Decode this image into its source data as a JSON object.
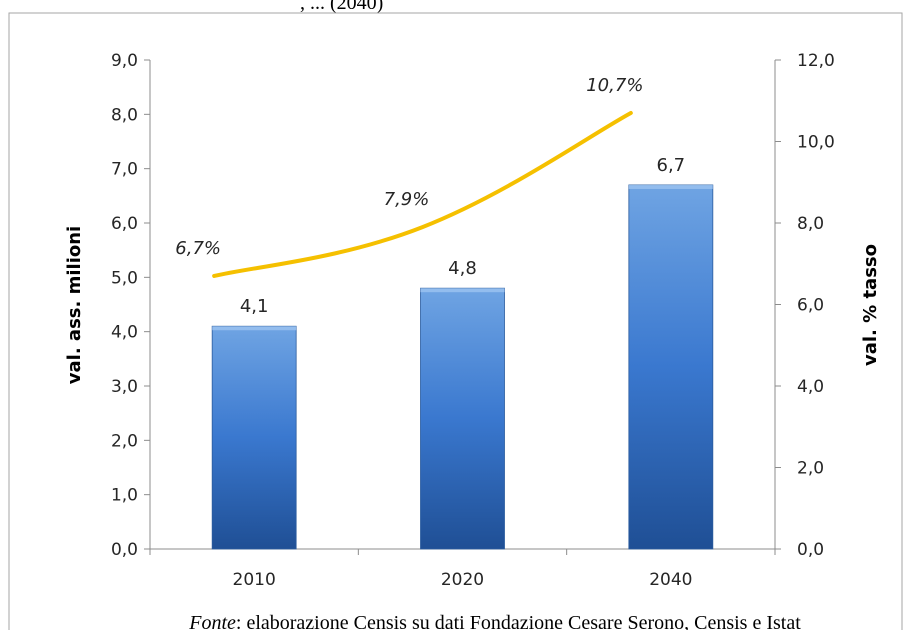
{
  "header_fragment": ", ... (2040)",
  "source_note": {
    "prefix": "Fonte",
    "text": ": elaborazione Censis su dati Fondazione Cesare Serono, Censis e Istat"
  },
  "colors": {
    "bar_top": "#6fa4e3",
    "bar_mid": "#3a78cf",
    "bar_bottom": "#1f4f95",
    "line": "#f5c000",
    "axis": "#8c8c8c",
    "frame": "#a6a6a6"
  },
  "chart_data": {
    "type": "bar",
    "title": "",
    "categories": [
      "2010",
      "2020",
      "2040"
    ],
    "series": [
      {
        "kind": "bar",
        "axis": "left",
        "values": [
          4.1,
          4.8,
          6.7
        ],
        "labels": [
          "4,1",
          "4,8",
          "6,7"
        ]
      },
      {
        "kind": "line",
        "axis": "right",
        "values": [
          6.7,
          7.9,
          10.7
        ],
        "labels": [
          "6,7%",
          "7,9%",
          "10,7%"
        ]
      }
    ],
    "ylabel": "val. ass. milioni",
    "y2label": "val. % tasso",
    "ylim": [
      0,
      9
    ],
    "y2lim": [
      0,
      12
    ],
    "yticks": [
      "0,0",
      "1,0",
      "2,0",
      "3,0",
      "4,0",
      "5,0",
      "6,0",
      "7,0",
      "8,0",
      "9,0"
    ],
    "y2ticks": [
      "0,0",
      "2,0",
      "4,0",
      "6,0",
      "8,0",
      "10,0",
      "12,0"
    ],
    "grid": false,
    "legend": "none"
  }
}
